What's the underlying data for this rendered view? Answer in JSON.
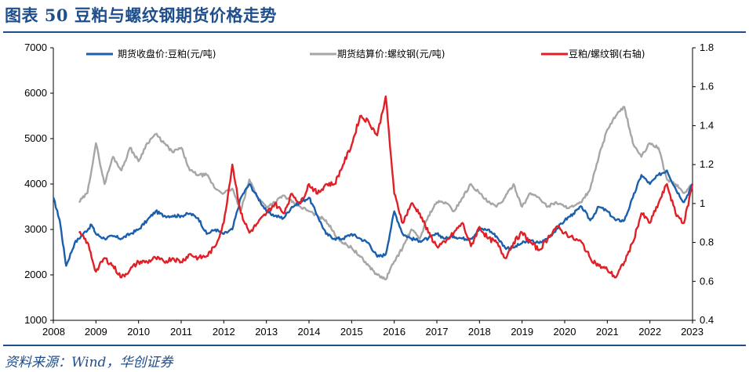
{
  "title": "图表 50  豆粕与螺纹钢期货价格走势",
  "source": "资料来源：Wind，华创证券",
  "chart_data": {
    "type": "line",
    "title": "图表 50  豆粕与螺纹钢期货价格走势",
    "xlabel": "",
    "ylabel": "",
    "x_ticks": [
      "2008",
      "2009",
      "2010",
      "2011",
      "2012",
      "2013",
      "2014",
      "2015",
      "2016",
      "2017",
      "2018",
      "2019",
      "2020",
      "2021",
      "2022",
      "2023"
    ],
    "ylim_left": [
      1000,
      7000
    ],
    "ylim_right": [
      0.4,
      1.8
    ],
    "left_ticks": [
      "1000",
      "2000",
      "3000",
      "4000",
      "5000",
      "6000",
      "7000"
    ],
    "right_ticks": [
      "0.4",
      "0.6",
      "0.8",
      "1",
      "1.2",
      "1.4",
      "1.6",
      "1.8"
    ],
    "grid": false,
    "legend_position": "top",
    "series": [
      {
        "name": "期货收盘价:豆粕(元/吨)",
        "axis": "left",
        "color": "#1a5fae",
        "x": [
          2008.0,
          2008.15,
          2008.3,
          2008.5,
          2008.7,
          2008.9,
          2009.0,
          2009.2,
          2009.4,
          2009.6,
          2009.8,
          2010.0,
          2010.2,
          2010.4,
          2010.6,
          2010.8,
          2011.0,
          2011.2,
          2011.4,
          2011.6,
          2011.8,
          2012.0,
          2012.2,
          2012.4,
          2012.6,
          2012.8,
          2013.0,
          2013.2,
          2013.4,
          2013.6,
          2013.8,
          2014.0,
          2014.2,
          2014.4,
          2014.6,
          2014.8,
          2015.0,
          2015.2,
          2015.4,
          2015.6,
          2015.8,
          2016.0,
          2016.2,
          2016.4,
          2016.6,
          2016.8,
          2017.0,
          2017.2,
          2017.4,
          2017.6,
          2017.8,
          2018.0,
          2018.2,
          2018.4,
          2018.6,
          2018.8,
          2019.0,
          2019.2,
          2019.4,
          2019.6,
          2019.8,
          2020.0,
          2020.2,
          2020.4,
          2020.6,
          2020.8,
          2021.0,
          2021.2,
          2021.4,
          2021.6,
          2021.8,
          2022.0,
          2022.2,
          2022.4,
          2022.6,
          2022.8,
          2023.0
        ],
        "values": [
          3700,
          3200,
          2200,
          2700,
          2900,
          3100,
          2900,
          2800,
          2850,
          2800,
          2900,
          3000,
          3200,
          3400,
          3300,
          3300,
          3300,
          3350,
          3250,
          2900,
          3000,
          2900,
          3000,
          3700,
          4000,
          3700,
          3400,
          3300,
          3250,
          3500,
          3600,
          3700,
          3300,
          2900,
          2800,
          2800,
          2900,
          2800,
          2700,
          2400,
          2450,
          3400,
          2900,
          2800,
          2750,
          2800,
          2900,
          2800,
          2850,
          2800,
          2800,
          3000,
          3000,
          2850,
          2600,
          2600,
          2700,
          2750,
          2700,
          2800,
          3000,
          3200,
          3350,
          3500,
          3200,
          3500,
          3400,
          3200,
          3200,
          3700,
          4200,
          4000,
          4200,
          4300,
          3900,
          3600,
          4000
        ]
      },
      {
        "name": "期货结算价:螺纹钢(元/吨)",
        "axis": "left",
        "color": "#a6a6a6",
        "x": [
          2008.6,
          2008.8,
          2009.0,
          2009.2,
          2009.4,
          2009.6,
          2009.8,
          2010.0,
          2010.2,
          2010.4,
          2010.6,
          2010.8,
          2011.0,
          2011.2,
          2011.4,
          2011.6,
          2011.8,
          2012.0,
          2012.2,
          2012.4,
          2012.6,
          2012.8,
          2013.0,
          2013.2,
          2013.4,
          2013.6,
          2013.8,
          2014.0,
          2014.2,
          2014.4,
          2014.6,
          2014.8,
          2015.0,
          2015.2,
          2015.4,
          2015.6,
          2015.8,
          2016.0,
          2016.2,
          2016.4,
          2016.6,
          2016.8,
          2017.0,
          2017.2,
          2017.4,
          2017.6,
          2017.8,
          2018.0,
          2018.2,
          2018.4,
          2018.6,
          2018.8,
          2019.0,
          2019.2,
          2019.4,
          2019.6,
          2019.8,
          2020.0,
          2020.2,
          2020.4,
          2020.6,
          2020.8,
          2021.0,
          2021.2,
          2021.4,
          2021.6,
          2021.8,
          2022.0,
          2022.2,
          2022.4,
          2022.6,
          2022.8,
          2023.0
        ],
        "values": [
          3600,
          3800,
          4900,
          4000,
          4600,
          4300,
          4800,
          4500,
          4900,
          5100,
          4900,
          4700,
          4800,
          4300,
          4200,
          4200,
          3900,
          3800,
          3900,
          3400,
          4100,
          3700,
          3500,
          3600,
          3750,
          3600,
          3500,
          3400,
          3300,
          3200,
          2900,
          2700,
          2600,
          2400,
          2200,
          2000,
          1900,
          2300,
          2600,
          3000,
          2800,
          3300,
          3600,
          3600,
          3400,
          3700,
          4000,
          3800,
          3600,
          3500,
          3700,
          4000,
          3500,
          3800,
          3700,
          3500,
          3600,
          3500,
          3500,
          3600,
          3900,
          4600,
          5200,
          5500,
          5700,
          4900,
          4600,
          4900,
          4800,
          4100,
          4000,
          3800,
          4000
        ]
      },
      {
        "name": "豆粕/螺纹钢(右轴)",
        "axis": "right",
        "color": "#e01f26",
        "x": [
          2008.6,
          2008.8,
          2009.0,
          2009.2,
          2009.4,
          2009.6,
          2009.8,
          2010.0,
          2010.2,
          2010.4,
          2010.6,
          2010.8,
          2011.0,
          2011.2,
          2011.4,
          2011.6,
          2011.8,
          2012.0,
          2012.2,
          2012.4,
          2012.6,
          2012.8,
          2013.0,
          2013.2,
          2013.4,
          2013.6,
          2013.8,
          2014.0,
          2014.2,
          2014.4,
          2014.6,
          2014.8,
          2015.0,
          2015.2,
          2015.4,
          2015.6,
          2015.8,
          2016.0,
          2016.2,
          2016.4,
          2016.6,
          2016.8,
          2017.0,
          2017.2,
          2017.4,
          2017.6,
          2017.8,
          2018.0,
          2018.2,
          2018.4,
          2018.6,
          2018.8,
          2019.0,
          2019.2,
          2019.4,
          2019.6,
          2019.8,
          2020.0,
          2020.2,
          2020.4,
          2020.6,
          2020.8,
          2021.0,
          2021.2,
          2021.4,
          2021.6,
          2021.8,
          2022.0,
          2022.2,
          2022.4,
          2022.6,
          2022.8,
          2023.0
        ],
        "values": [
          0.85,
          0.8,
          0.65,
          0.72,
          0.68,
          0.62,
          0.66,
          0.7,
          0.7,
          0.72,
          0.7,
          0.72,
          0.7,
          0.74,
          0.72,
          0.73,
          0.78,
          0.9,
          1.2,
          0.95,
          0.85,
          0.9,
          0.95,
          1.0,
          0.95,
          1.05,
          1.0,
          1.1,
          1.05,
          1.1,
          1.1,
          1.2,
          1.3,
          1.45,
          1.42,
          1.35,
          1.55,
          1.05,
          0.9,
          1.0,
          0.95,
          0.85,
          0.78,
          0.8,
          0.85,
          0.9,
          0.78,
          0.88,
          0.82,
          0.8,
          0.72,
          0.8,
          0.85,
          0.8,
          0.76,
          0.82,
          0.88,
          0.85,
          0.82,
          0.8,
          0.72,
          0.68,
          0.66,
          0.62,
          0.7,
          0.8,
          0.95,
          0.9,
          1.0,
          1.1,
          0.95,
          0.9,
          1.1
        ]
      }
    ]
  }
}
